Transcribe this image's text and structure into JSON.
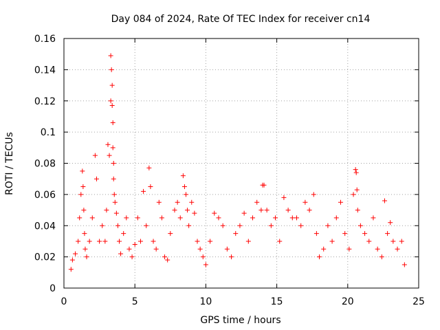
{
  "chart_data": {
    "type": "scatter",
    "title": "Day 084 of 2024, Rate Of TEC Index for receiver cn14",
    "xlabel": "GPS time / hours",
    "ylabel": "ROTI / TECUs",
    "xlim": [
      0,
      25
    ],
    "ylim": [
      0,
      0.16
    ],
    "xticks": [
      0,
      5,
      10,
      15,
      20,
      25
    ],
    "xtick_labels": [
      "0",
      "5",
      "10",
      "15",
      "20",
      "25"
    ],
    "yticks": [
      0,
      0.02,
      0.04,
      0.06,
      0.08,
      0.1,
      0.12,
      0.14,
      0.16
    ],
    "ytick_labels": [
      "0",
      "0.02",
      "0.04",
      "0.06",
      "0.08",
      "0.1",
      "0.12",
      "0.14",
      "0.16"
    ],
    "grid": true,
    "marker": "+",
    "color": "#ff0000",
    "series": [
      {
        "name": "ROTI",
        "x": [
          0.5,
          0.6,
          0.8,
          1.0,
          1.1,
          1.2,
          1.3,
          1.35,
          1.4,
          1.45,
          1.5,
          1.6,
          1.8,
          2.0,
          2.2,
          2.3,
          2.5,
          2.7,
          2.9,
          3.0,
          3.1,
          3.2,
          3.3,
          3.3,
          3.35,
          3.4,
          3.4,
          3.45,
          3.45,
          3.5,
          3.5,
          3.55,
          3.6,
          3.7,
          3.8,
          3.9,
          4.0,
          4.2,
          4.4,
          4.6,
          4.8,
          5.0,
          5.2,
          5.4,
          5.6,
          5.8,
          6.0,
          6.1,
          6.3,
          6.5,
          6.7,
          6.9,
          7.1,
          7.3,
          7.5,
          7.8,
          8.0,
          8.2,
          8.4,
          8.5,
          8.6,
          8.7,
          8.8,
          9.0,
          9.2,
          9.4,
          9.6,
          9.8,
          10.0,
          10.3,
          10.6,
          10.9,
          11.2,
          11.5,
          11.8,
          12.1,
          12.4,
          12.7,
          13.0,
          13.3,
          13.6,
          13.9,
          14.0,
          14.1,
          14.3,
          14.6,
          14.9,
          15.2,
          15.5,
          15.8,
          16.1,
          16.4,
          16.7,
          17.0,
          17.3,
          17.6,
          17.8,
          18.0,
          18.3,
          18.6,
          18.9,
          19.2,
          19.5,
          19.8,
          20.1,
          20.4,
          20.55,
          20.6,
          20.65,
          20.7,
          20.9,
          21.2,
          21.5,
          21.8,
          22.1,
          22.4,
          22.6,
          22.8,
          23.0,
          23.2,
          23.5,
          23.8,
          24.0
        ],
        "y": [
          0.012,
          0.018,
          0.022,
          0.03,
          0.045,
          0.06,
          0.075,
          0.065,
          0.05,
          0.035,
          0.025,
          0.02,
          0.03,
          0.045,
          0.085,
          0.07,
          0.03,
          0.04,
          0.03,
          0.05,
          0.092,
          0.085,
          0.12,
          0.149,
          0.14,
          0.13,
          0.117,
          0.106,
          0.09,
          0.08,
          0.07,
          0.06,
          0.055,
          0.048,
          0.04,
          0.03,
          0.022,
          0.035,
          0.045,
          0.025,
          0.02,
          0.028,
          0.045,
          0.03,
          0.062,
          0.04,
          0.077,
          0.065,
          0.03,
          0.025,
          0.055,
          0.045,
          0.02,
          0.018,
          0.035,
          0.05,
          0.055,
          0.045,
          0.072,
          0.065,
          0.06,
          0.05,
          0.04,
          0.055,
          0.048,
          0.03,
          0.025,
          0.02,
          0.015,
          0.03,
          0.048,
          0.045,
          0.04,
          0.025,
          0.02,
          0.035,
          0.04,
          0.048,
          0.03,
          0.045,
          0.055,
          0.05,
          0.066,
          0.066,
          0.05,
          0.04,
          0.045,
          0.03,
          0.058,
          0.05,
          0.045,
          0.045,
          0.04,
          0.055,
          0.05,
          0.06,
          0.035,
          0.02,
          0.025,
          0.04,
          0.03,
          0.045,
          0.055,
          0.035,
          0.025,
          0.06,
          0.076,
          0.074,
          0.063,
          0.05,
          0.04,
          0.035,
          0.03,
          0.045,
          0.025,
          0.02,
          0.056,
          0.035,
          0.042,
          0.03,
          0.025,
          0.03,
          0.015
        ]
      }
    ]
  }
}
